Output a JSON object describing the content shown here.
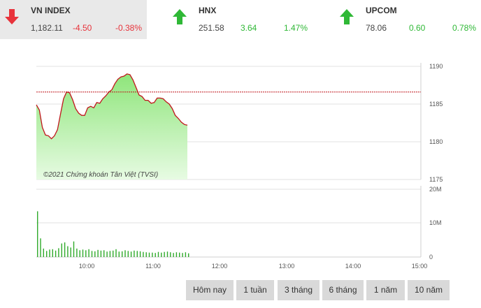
{
  "tickers": [
    {
      "name": "VN INDEX",
      "value": "1,182.11",
      "change": "-4.50",
      "pct": "-0.38%",
      "direction": "down",
      "active": true
    },
    {
      "name": "HNX",
      "value": "251.58",
      "change": "3.64",
      "pct": "1.47%",
      "direction": "up",
      "active": false
    },
    {
      "name": "UPCOM",
      "value": "78.06",
      "change": "0.60",
      "pct": "0.78%",
      "direction": "up",
      "active": false
    }
  ],
  "colors": {
    "up": "#2fb836",
    "down": "#e8333b",
    "line": "#c0161c",
    "area_top": "#8ee57a",
    "area_bottom": "#e7fbe3",
    "volume": "#2faa2a",
    "reference": "#c0161c"
  },
  "copyright": "©2021 Chứng khoán Tân Việt (TVSI)",
  "buttons": [
    "Hôm nay",
    "1 tuần",
    "3 tháng",
    "6 tháng",
    "1 năm",
    "10 năm"
  ],
  "chart_data": {
    "type": "line",
    "title": "",
    "reference": 1186.6,
    "y_ticks": [
      "1190",
      "1185",
      "1180",
      "1175"
    ],
    "ylim": [
      1175,
      1190
    ],
    "x_ticks": [
      "10:00",
      "11:00",
      "12:00",
      "13:00",
      "14:00",
      "15:00"
    ],
    "volume_ticks": [
      "20M",
      "10M",
      "0"
    ],
    "volume_lim": [
      0,
      20
    ],
    "series": [
      {
        "values": [
          1184.9,
          1184.2,
          1181.9,
          1180.9,
          1180.8,
          1180.4,
          1180.8,
          1181.6,
          1183.7,
          1185.7,
          1186.6,
          1186.5,
          1185.6,
          1184.4,
          1183.8,
          1183.5,
          1183.5,
          1184.5,
          1184.7,
          1184.5,
          1185.2,
          1185.1,
          1185.7,
          1186.1,
          1186.6,
          1186.9,
          1187.7,
          1188.3,
          1188.6,
          1188.7,
          1189.0,
          1188.9,
          1188.2,
          1187.2,
          1186.2,
          1186.0,
          1185.5,
          1185.5,
          1185.1,
          1185.2,
          1185.8,
          1185.8,
          1185.7,
          1185.3,
          1185.0,
          1184.4,
          1183.5,
          1183.1,
          1182.6,
          1182.3,
          1182.2
        ]
      }
    ],
    "volume": [
      13.5,
      5.5,
      2.5,
      1.8,
      2.2,
      2.3,
      1.9,
      2.6,
      4.0,
      4.3,
      3.2,
      2.8,
      4.6,
      2.5,
      2.0,
      2.2,
      2.0,
      2.3,
      1.8,
      1.7,
      2.1,
      1.9,
      2.0,
      1.6,
      1.8,
      1.9,
      2.3,
      1.6,
      1.7,
      2.0,
      1.8,
      1.6,
      1.9,
      1.8,
      1.7,
      1.5,
      1.4,
      1.3,
      1.3,
      1.2,
      1.5,
      1.3,
      1.5,
      1.6,
      1.4,
      1.2,
      1.4,
      1.3,
      1.2,
      1.4,
      1.1
    ]
  }
}
